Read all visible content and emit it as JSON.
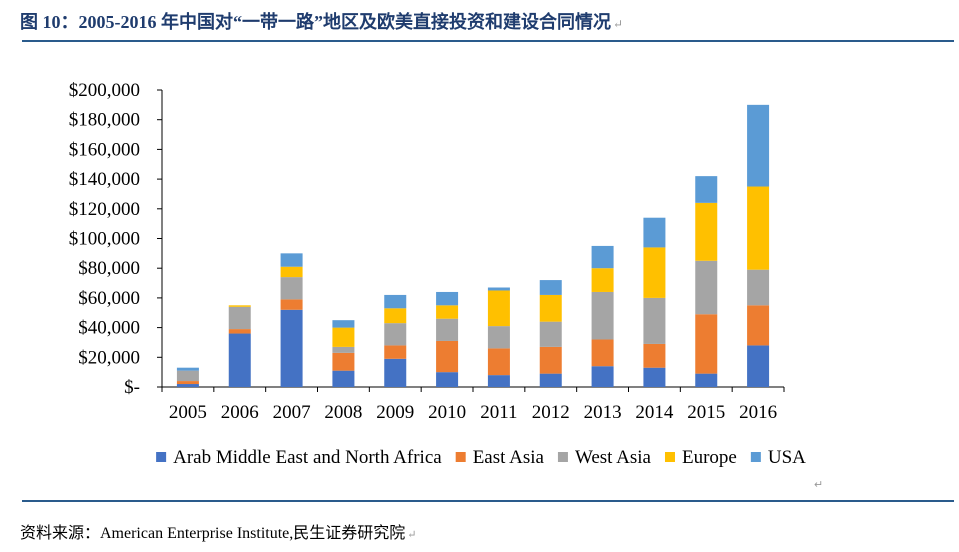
{
  "figure": {
    "title": "图 10：2005-2016 年中国对“一带一路”地区及欧美直接投资和建设合同情况",
    "source": "资料来源：American Enterprise Institute,民生证券研究院",
    "return_mark": "↵"
  },
  "chart_data": {
    "type": "bar",
    "stacked": true,
    "title": "",
    "xlabel": "",
    "ylabel": "",
    "ylim": [
      0,
      200000
    ],
    "ytick_step": 20000,
    "ytick_labels": [
      "$-",
      "$20,000",
      "$40,000",
      "$60,000",
      "$80,000",
      "$100,000",
      "$120,000",
      "$140,000",
      "$160,000",
      "$180,000",
      "$200,000"
    ],
    "grid": false,
    "legend_position": "bottom",
    "categories": [
      "2005",
      "2006",
      "2007",
      "2008",
      "2009",
      "2010",
      "2011",
      "2012",
      "2013",
      "2014",
      "2015",
      "2016"
    ],
    "series": [
      {
        "name": "Arab Middle East and North Africa",
        "color": "#4472C4",
        "values": [
          2000,
          36000,
          52000,
          11000,
          19000,
          10000,
          8000,
          9000,
          14000,
          13000,
          9000,
          28000
        ]
      },
      {
        "name": "East Asia",
        "color": "#ED7D31",
        "values": [
          2000,
          3000,
          7000,
          12000,
          9000,
          21000,
          18000,
          18000,
          18000,
          16000,
          40000,
          27000
        ]
      },
      {
        "name": "West Asia",
        "color": "#A5A5A5",
        "values": [
          7000,
          15000,
          15000,
          4000,
          15000,
          15000,
          15000,
          17000,
          32000,
          31000,
          36000,
          24000
        ]
      },
      {
        "name": "Europe",
        "color": "#FFC000",
        "values": [
          0,
          1000,
          7000,
          13000,
          10000,
          9000,
          24000,
          18000,
          16000,
          34000,
          39000,
          56000
        ]
      },
      {
        "name": "USA",
        "color": "#5B9BD5",
        "values": [
          2000,
          0,
          9000,
          5000,
          9000,
          9000,
          2000,
          10000,
          15000,
          20000,
          18000,
          55000
        ]
      }
    ]
  }
}
